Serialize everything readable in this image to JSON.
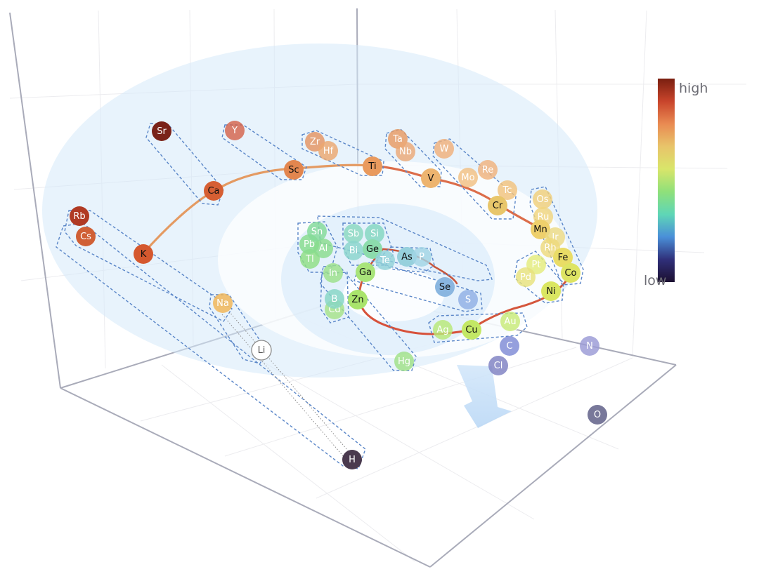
{
  "colorbar": {
    "high_label": "high",
    "low_label": "low",
    "stops": [
      "#7a1f10",
      "#c8442b",
      "#e98a52",
      "#e8c46a",
      "#d9e56a",
      "#8fe07a",
      "#5fd6b6",
      "#4a8fd8",
      "#30307a",
      "#1c1030"
    ]
  },
  "elements": [
    {
      "id": "rb",
      "symbol": "Rb",
      "color": "#b03a24",
      "text": "#ffffff",
      "faded": false
    },
    {
      "id": "cs",
      "symbol": "Cs",
      "color": "#d06036",
      "text": "#ffffff",
      "faded": false
    },
    {
      "id": "k",
      "symbol": "K",
      "color": "#d5582e",
      "text": "#111111",
      "faded": false
    },
    {
      "id": "sr",
      "symbol": "Sr",
      "color": "#7a2218",
      "text": "#ffffff",
      "faded": false
    },
    {
      "id": "ca",
      "symbol": "Ca",
      "color": "#d65f33",
      "text": "#111111",
      "faded": false
    },
    {
      "id": "y",
      "symbol": "Y",
      "color": "#d4634a",
      "text": "#ffffff",
      "faded": true
    },
    {
      "id": "sc",
      "symbol": "Sc",
      "color": "#e2864f",
      "text": "#111111",
      "faded": false
    },
    {
      "id": "zr",
      "symbol": "Zr",
      "color": "#e49462",
      "text": "#ffffff",
      "faded": true
    },
    {
      "id": "hf",
      "symbol": "Hf",
      "color": "#eba76f",
      "text": "#ffffff",
      "faded": true
    },
    {
      "id": "ti",
      "symbol": "Ti",
      "color": "#e99a5e",
      "text": "#111111",
      "faded": false
    },
    {
      "id": "ta",
      "symbol": "Ta",
      "color": "#e89a62",
      "text": "#ffffff",
      "faded": true
    },
    {
      "id": "nb",
      "symbol": "Nb",
      "color": "#eba876",
      "text": "#ffffff",
      "faded": true
    },
    {
      "id": "v",
      "symbol": "V",
      "color": "#edb46f",
      "text": "#111111",
      "faded": false
    },
    {
      "id": "w",
      "symbol": "W",
      "color": "#f0b07a",
      "text": "#ffffff",
      "faded": true
    },
    {
      "id": "mo",
      "symbol": "Mo",
      "color": "#f2c083",
      "text": "#ffffff",
      "faded": true
    },
    {
      "id": "re",
      "symbol": "Re",
      "color": "#f0b27c",
      "text": "#ffffff",
      "faded": true
    },
    {
      "id": "tc",
      "symbol": "Tc",
      "color": "#f1c27c",
      "text": "#ffffff",
      "faded": true
    },
    {
      "id": "cr",
      "symbol": "Cr",
      "color": "#e8c66a",
      "text": "#111111",
      "faded": false
    },
    {
      "id": "os",
      "symbol": "Os",
      "color": "#f1d07a",
      "text": "#ffffff",
      "faded": true
    },
    {
      "id": "ru",
      "symbol": "Ru",
      "color": "#f0d47e",
      "text": "#ffffff",
      "faded": true
    },
    {
      "id": "mn",
      "symbol": "Mn",
      "color": "#eed06c",
      "text": "#111111",
      "faded": false
    },
    {
      "id": "ir",
      "symbol": "Ir",
      "color": "#ecd984",
      "text": "#ffffff",
      "faded": true
    },
    {
      "id": "rh",
      "symbol": "Rh",
      "color": "#eed97c",
      "text": "#ffffff",
      "faded": true
    },
    {
      "id": "fe",
      "symbol": "Fe",
      "color": "#e9dc66",
      "text": "#111111",
      "faded": false
    },
    {
      "id": "co",
      "symbol": "Co",
      "color": "#dee464",
      "text": "#111111",
      "faded": false
    },
    {
      "id": "pt",
      "symbol": "Pt",
      "color": "#e4ec7c",
      "text": "#ffffff",
      "faded": true
    },
    {
      "id": "pd",
      "symbol": "Pd",
      "color": "#e8e27c",
      "text": "#ffffff",
      "faded": true
    },
    {
      "id": "ni",
      "symbol": "Ni",
      "color": "#dae662",
      "text": "#111111",
      "faded": false
    },
    {
      "id": "au",
      "symbol": "Au",
      "color": "#c8ea78",
      "text": "#ffffff",
      "faded": true
    },
    {
      "id": "cu",
      "symbol": "Cu",
      "color": "#c3e865",
      "text": "#111111",
      "faded": false
    },
    {
      "id": "ag",
      "symbol": "Ag",
      "color": "#b8e876",
      "text": "#ffffff",
      "faded": true
    },
    {
      "id": "hg",
      "symbol": "Hg",
      "color": "#9fe086",
      "text": "#ffffff",
      "faded": true
    },
    {
      "id": "zn",
      "symbol": "Zn",
      "color": "#a9e46c",
      "text": "#111111",
      "faded": false
    },
    {
      "id": "cd",
      "symbol": "Cd",
      "color": "#a6e288",
      "text": "#ffffff",
      "faded": true
    },
    {
      "id": "b",
      "symbol": "B",
      "color": "#86d6c4",
      "text": "#ffffff",
      "faded": true
    },
    {
      "id": "in",
      "symbol": "In",
      "color": "#9ce08a",
      "text": "#ffffff",
      "faded": true
    },
    {
      "id": "ga",
      "symbol": "Ga",
      "color": "#a8e47a",
      "text": "#111111",
      "faded": false
    },
    {
      "id": "tl",
      "symbol": "Tl",
      "color": "#8fde82",
      "text": "#ffffff",
      "faded": true
    },
    {
      "id": "al",
      "symbol": "Al",
      "color": "#8adc8c",
      "text": "#ffffff",
      "faded": true
    },
    {
      "id": "pb",
      "symbol": "Pb",
      "color": "#86dc8c",
      "text": "#ffffff",
      "faded": true
    },
    {
      "id": "sn",
      "symbol": "Sn",
      "color": "#84da98",
      "text": "#ffffff",
      "faded": true
    },
    {
      "id": "sb",
      "symbol": "Sb",
      "color": "#8ad8c0",
      "text": "#ffffff",
      "faded": true
    },
    {
      "id": "si",
      "symbol": "Si",
      "color": "#82d6c0",
      "text": "#ffffff",
      "faded": true
    },
    {
      "id": "bi",
      "symbol": "Bi",
      "color": "#8ad4cc",
      "text": "#ffffff",
      "faded": true
    },
    {
      "id": "ge",
      "symbol": "Ge",
      "color": "#8cdcac",
      "text": "#111111",
      "faded": false
    },
    {
      "id": "te",
      "symbol": "Te",
      "color": "#92d2d8",
      "text": "#ffffff",
      "faded": true
    },
    {
      "id": "as",
      "symbol": "As",
      "color": "#96d0dc",
      "text": "#111111",
      "faded": false
    },
    {
      "id": "p",
      "symbol": "P",
      "color": "#a2d4e4",
      "text": "#ffffff",
      "faded": true
    },
    {
      "id": "se",
      "symbol": "Se",
      "color": "#8ab6e0",
      "text": "#111111",
      "faded": false
    },
    {
      "id": "s",
      "symbol": "S",
      "color": "#90aee4",
      "text": "#ffffff",
      "faded": true
    },
    {
      "id": "c",
      "symbol": "C",
      "color": "#7e8ad6",
      "text": "#ffffff",
      "faded": true
    },
    {
      "id": "cl",
      "symbol": "Cl",
      "color": "#7e80c2",
      "text": "#ffffff",
      "faded": true
    },
    {
      "id": "n",
      "symbol": "N",
      "color": "#9a9ad6",
      "text": "#ffffff",
      "faded": true
    },
    {
      "id": "o",
      "symbol": "O",
      "color": "#5a5a84",
      "text": "#ffffff",
      "faded": true
    },
    {
      "id": "na",
      "symbol": "Na",
      "color": "#f2b453",
      "text": "#ffffff",
      "faded": true
    },
    {
      "id": "li",
      "symbol": "Li",
      "color": "#ffffff",
      "text": "#555555",
      "faded": false
    },
    {
      "id": "h",
      "symbol": "H",
      "color": "#4a3a4e",
      "text": "#ffffff",
      "faded": false
    }
  ]
}
